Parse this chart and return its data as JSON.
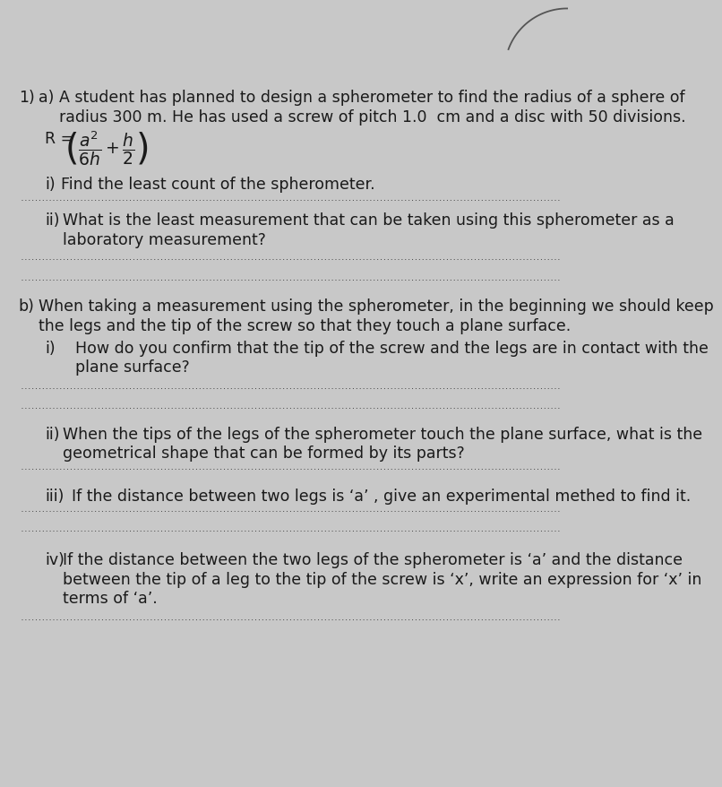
{
  "bg_color": "#c8c8c8",
  "text_color": "#1a1a1a",
  "dot_color": "#444444",
  "curl_color": "#555555",
  "q_num": "1)",
  "a_label": "a)",
  "a_text1": "A student has planned to design a spherometer to find the radius of a sphere of",
  "a_text2": "radius 300 m. He has used a screw of pitch 1.0  cm and a disc with 50 divisions.",
  "i_label": "i)",
  "i_text": "Find the least count of the spherometer.",
  "ii_label": "ii)",
  "ii_text1": "What is the least measurement that can be taken using this spherometer as a",
  "ii_text2": "laboratory measurement?",
  "b_label": "b)",
  "b_text1": "When taking a measurement using the spherometer, in the beginning we should keep",
  "b_text2": "the legs and the tip of the screw so that they touch a plane surface.",
  "bi_label": "i)",
  "bi_text1": "How do you confirm that the tip of the screw and the legs are in contact with the",
  "bi_text2": "plane surface?",
  "bii_label": "ii)",
  "bii_text1": "When the tips of the legs of the spherometer touch the plane surface, what is the",
  "bii_text2": "geometrical shape that can be formed by its parts?",
  "biii_label": "iii)",
  "biii_text": "If the distance between two legs is ‘a’ , give an experimental methed to find it.",
  "biv_label": "iv)",
  "biv_text1": "If the distance between the two legs of the spherometer is ‘a’ and the distance",
  "biv_text2": "between the tip of a leg to the tip of the screw is ‘x’, write an expression for ‘x’ in",
  "biv_text3": "terms of ‘a’.",
  "fs": 12.5,
  "fs_formula": 13.5
}
